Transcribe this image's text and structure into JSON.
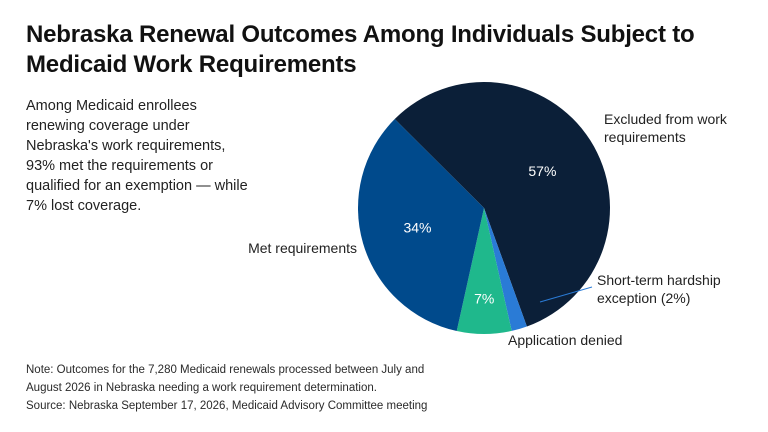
{
  "title": "Nebraska Renewal Outcomes Among Individuals Subject to Medicaid Work Requirements",
  "summary": "Among Medicaid enrollees renewing coverage under Nebraska's work requirements, 93% met the requirements or qualified for an exemption — while 7% lost coverage.",
  "footer": {
    "note_line1": "Note: Outcomes for the 7,280 Medicaid renewals processed between July and",
    "note_line2": "August 2026 in Nebraska needing a work requirement determination.",
    "source": "Source: Nebraska September 17, 2026, Medicaid Advisory Committee meeting"
  },
  "chart_data": {
    "type": "pie",
    "slices": [
      {
        "name": "Excluded from work requirements",
        "value": 57,
        "label": "57%",
        "color": "#0b1f38"
      },
      {
        "name": "Short-term hardship exception (2%)",
        "value": 2,
        "label": "",
        "color": "#2a7bd6"
      },
      {
        "name": "Application denied",
        "value": 7,
        "label": "7%",
        "color": "#1fb88c"
      },
      {
        "name": "Met requirements",
        "value": 34,
        "label": "34%",
        "color": "#004a8c"
      }
    ],
    "label_color": "#ffffff"
  }
}
